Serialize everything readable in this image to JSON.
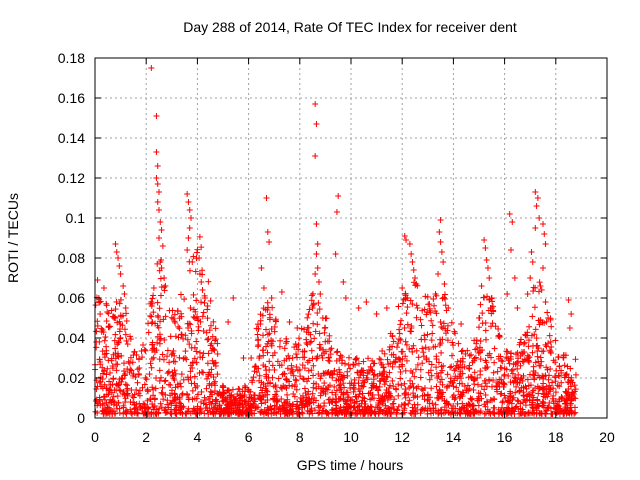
{
  "chart_data": {
    "type": "scatter",
    "title": "Day 288 of 2014, Rate Of TEC Index for receiver dent",
    "xlabel": "GPS time / hours",
    "ylabel": "ROTI / TECUs",
    "xlim": [
      0,
      20
    ],
    "ylim": [
      0,
      0.18
    ],
    "xticks": [
      0,
      2,
      4,
      6,
      8,
      10,
      12,
      14,
      16,
      18,
      20
    ],
    "yticks": [
      0,
      0.02,
      0.04,
      0.06,
      0.08,
      0.1,
      0.12,
      0.14,
      0.16,
      0.18
    ],
    "xtick_labels": [
      "0",
      "2",
      "4",
      "6",
      "8",
      "10",
      "12",
      "14",
      "16",
      "18",
      "20"
    ],
    "ytick_labels": [
      "0",
      "0.02",
      "0.04",
      "0.06",
      "0.08",
      "0.1",
      "0.12",
      "0.14",
      "0.16",
      "0.18"
    ],
    "grid": true,
    "marker": "+",
    "color": "#ff0000",
    "data_x_range": [
      0,
      18.8
    ],
    "points": [
      [
        0.1,
        0.069
      ],
      [
        0.15,
        0.06
      ],
      [
        0.2,
        0.052
      ],
      [
        0.3,
        0.044
      ],
      [
        0.35,
        0.065
      ],
      [
        0.05,
        0.038
      ],
      [
        0.2,
        0.028
      ],
      [
        0.8,
        0.087
      ],
      [
        0.85,
        0.083
      ],
      [
        0.9,
        0.08
      ],
      [
        0.95,
        0.076
      ],
      [
        1.0,
        0.072
      ],
      [
        1.1,
        0.066
      ],
      [
        1.15,
        0.062
      ],
      [
        1.2,
        0.055
      ],
      [
        0.75,
        0.05
      ],
      [
        2.2,
        0.175
      ],
      [
        2.4,
        0.151
      ],
      [
        2.4,
        0.133
      ],
      [
        2.45,
        0.126
      ],
      [
        2.4,
        0.12
      ],
      [
        2.45,
        0.117
      ],
      [
        2.5,
        0.113
      ],
      [
        2.45,
        0.108
      ],
      [
        2.5,
        0.104
      ],
      [
        2.55,
        0.098
      ],
      [
        2.6,
        0.094
      ],
      [
        2.5,
        0.09
      ],
      [
        2.65,
        0.086
      ],
      [
        2.55,
        0.078
      ],
      [
        2.6,
        0.075
      ],
      [
        2.7,
        0.07
      ],
      [
        2.3,
        0.065
      ],
      [
        2.2,
        0.058
      ],
      [
        3.6,
        0.112
      ],
      [
        3.65,
        0.108
      ],
      [
        3.7,
        0.104
      ],
      [
        3.75,
        0.1
      ],
      [
        3.7,
        0.095
      ],
      [
        3.65,
        0.09
      ],
      [
        3.6,
        0.084
      ],
      [
        3.8,
        0.078
      ],
      [
        4.1,
        0.072
      ],
      [
        4.15,
        0.068
      ],
      [
        4.2,
        0.064
      ],
      [
        4.3,
        0.06
      ],
      [
        4.4,
        0.056
      ],
      [
        3.9,
        0.05
      ],
      [
        5.2,
        0.048
      ],
      [
        5.4,
        0.06
      ],
      [
        5.8,
        0.03
      ],
      [
        6.1,
        0.03
      ],
      [
        6.5,
        0.075
      ],
      [
        6.7,
        0.11
      ],
      [
        6.75,
        0.093
      ],
      [
        6.8,
        0.088
      ],
      [
        6.6,
        0.065
      ],
      [
        6.9,
        0.06
      ],
      [
        7.3,
        0.063
      ],
      [
        7.6,
        0.048
      ],
      [
        7.9,
        0.045
      ],
      [
        8.6,
        0.157
      ],
      [
        8.65,
        0.147
      ],
      [
        8.6,
        0.131
      ],
      [
        8.65,
        0.097
      ],
      [
        8.7,
        0.087
      ],
      [
        8.65,
        0.082
      ],
      [
        8.7,
        0.075
      ],
      [
        8.6,
        0.072
      ],
      [
        8.75,
        0.068
      ],
      [
        8.8,
        0.062
      ],
      [
        8.5,
        0.055
      ],
      [
        8.9,
        0.05
      ],
      [
        9.5,
        0.111
      ],
      [
        9.45,
        0.103
      ],
      [
        9.4,
        0.082
      ],
      [
        9.7,
        0.068
      ],
      [
        9.8,
        0.06
      ],
      [
        10.3,
        0.055
      ],
      [
        10.6,
        0.058
      ],
      [
        11.0,
        0.052
      ],
      [
        11.4,
        0.055
      ],
      [
        12.1,
        0.091
      ],
      [
        12.15,
        0.089
      ],
      [
        12.3,
        0.087
      ],
      [
        12.35,
        0.082
      ],
      [
        12.4,
        0.078
      ],
      [
        12.45,
        0.074
      ],
      [
        12.5,
        0.07
      ],
      [
        12.55,
        0.067
      ],
      [
        12.0,
        0.065
      ],
      [
        12.2,
        0.06
      ],
      [
        12.6,
        0.055
      ],
      [
        13.5,
        0.099
      ],
      [
        13.45,
        0.093
      ],
      [
        13.5,
        0.088
      ],
      [
        13.55,
        0.083
      ],
      [
        13.6,
        0.078
      ],
      [
        13.4,
        0.072
      ],
      [
        13.65,
        0.067
      ],
      [
        13.3,
        0.062
      ],
      [
        13.8,
        0.055
      ],
      [
        14.3,
        0.047
      ],
      [
        15.2,
        0.089
      ],
      [
        15.25,
        0.085
      ],
      [
        15.3,
        0.079
      ],
      [
        15.35,
        0.075
      ],
      [
        15.4,
        0.07
      ],
      [
        15.1,
        0.066
      ],
      [
        15.5,
        0.06
      ],
      [
        15.45,
        0.055
      ],
      [
        15.0,
        0.05
      ],
      [
        16.2,
        0.102
      ],
      [
        16.3,
        0.098
      ],
      [
        16.25,
        0.084
      ],
      [
        16.4,
        0.07
      ],
      [
        16.1,
        0.062
      ],
      [
        16.5,
        0.055
      ],
      [
        17.2,
        0.113
      ],
      [
        17.3,
        0.11
      ],
      [
        17.25,
        0.106
      ],
      [
        17.35,
        0.1
      ],
      [
        17.2,
        0.095
      ],
      [
        17.5,
        0.097
      ],
      [
        17.55,
        0.092
      ],
      [
        17.6,
        0.087
      ],
      [
        17.05,
        0.083
      ],
      [
        17.1,
        0.078
      ],
      [
        17.5,
        0.075
      ],
      [
        17.0,
        0.07
      ],
      [
        17.4,
        0.066
      ],
      [
        16.9,
        0.062
      ],
      [
        17.6,
        0.058
      ],
      [
        17.7,
        0.05
      ],
      [
        18.5,
        0.059
      ],
      [
        18.6,
        0.052
      ],
      [
        18.55,
        0.045
      ]
    ]
  }
}
